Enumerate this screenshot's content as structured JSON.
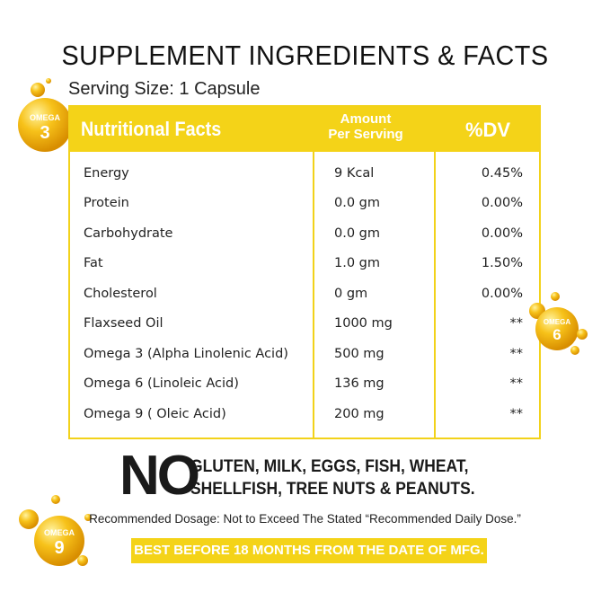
{
  "title": "SUPPLEMENT INGREDIENTS & FACTS",
  "serving_size": "Serving Size: 1 Capsule",
  "table": {
    "headers": {
      "nutrient": "Nutritional Facts",
      "amount_line1": "Amount",
      "amount_line2": "Per Serving",
      "dv": "%DV"
    },
    "rows": [
      {
        "name": "Energy",
        "amount": "9 Kcal",
        "dv": "0.45%"
      },
      {
        "name": "Protein",
        "amount": "0.0 gm",
        "dv": "0.00%"
      },
      {
        "name": "Carbohydrate",
        "amount": "0.0 gm",
        "dv": "0.00%"
      },
      {
        "name": "Fat",
        "amount": "1.0 gm",
        "dv": "1.50%"
      },
      {
        "name": "Cholesterol",
        "amount": "0 gm",
        "dv": "0.00%"
      },
      {
        "name": "Flaxseed Oil",
        "amount": "1000 mg",
        "dv": "**"
      },
      {
        "name": "Omega 3 (Alpha Linolenic Acid)",
        "amount": "500 mg",
        "dv": "**"
      },
      {
        "name": "Omega 6 (Linoleic Acid)",
        "amount": "136 mg",
        "dv": "**"
      },
      {
        "name": "Omega 9 ( Oleic Acid)",
        "amount": "200 mg",
        "dv": "**"
      }
    ]
  },
  "allergen": {
    "no": "NO",
    "line1": "GLUTEN, MILK, EGGS, FISH, WHEAT,",
    "line2": "SHELLFISH, TREE NUTS & PEANUTS."
  },
  "dosage": "Recommended Dosage: Not to Exceed The Stated “Recommended Daily Dose.”",
  "best_before": "BEST BEFORE 18 MONTHS FROM THE DATE OF MFG.",
  "badges": {
    "omega3": {
      "word": "OMEGA",
      "num": "3"
    },
    "omega6": {
      "word": "OMEGA",
      "num": "6"
    },
    "omega9": {
      "word": "OMEGA",
      "num": "9"
    }
  },
  "colors": {
    "accent": "#f4d318",
    "bubble": "#f2b300",
    "text": "#1a1a1a"
  }
}
